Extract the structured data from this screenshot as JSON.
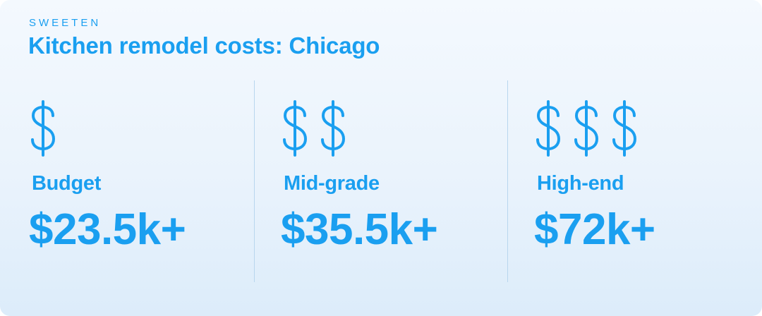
{
  "brand": "SWEETEN",
  "title": "Kitchen remodel costs: Chicago",
  "colors": {
    "accent": "#1a9ff0",
    "divider": "#b8d6ee",
    "background_top": "#f4f9fe",
    "background_bottom": "#dcecfa"
  },
  "tiers": [
    {
      "label": "Budget",
      "price": "$23.5k+",
      "icon": "dollar-sign-icon",
      "icon_count": 1
    },
    {
      "label": "Mid-grade",
      "price": "$35.5k+",
      "icon": "dollar-sign-icon",
      "icon_count": 2
    },
    {
      "label": "High-end",
      "price": "$72k+",
      "icon": "dollar-sign-icon",
      "icon_count": 3
    }
  ]
}
